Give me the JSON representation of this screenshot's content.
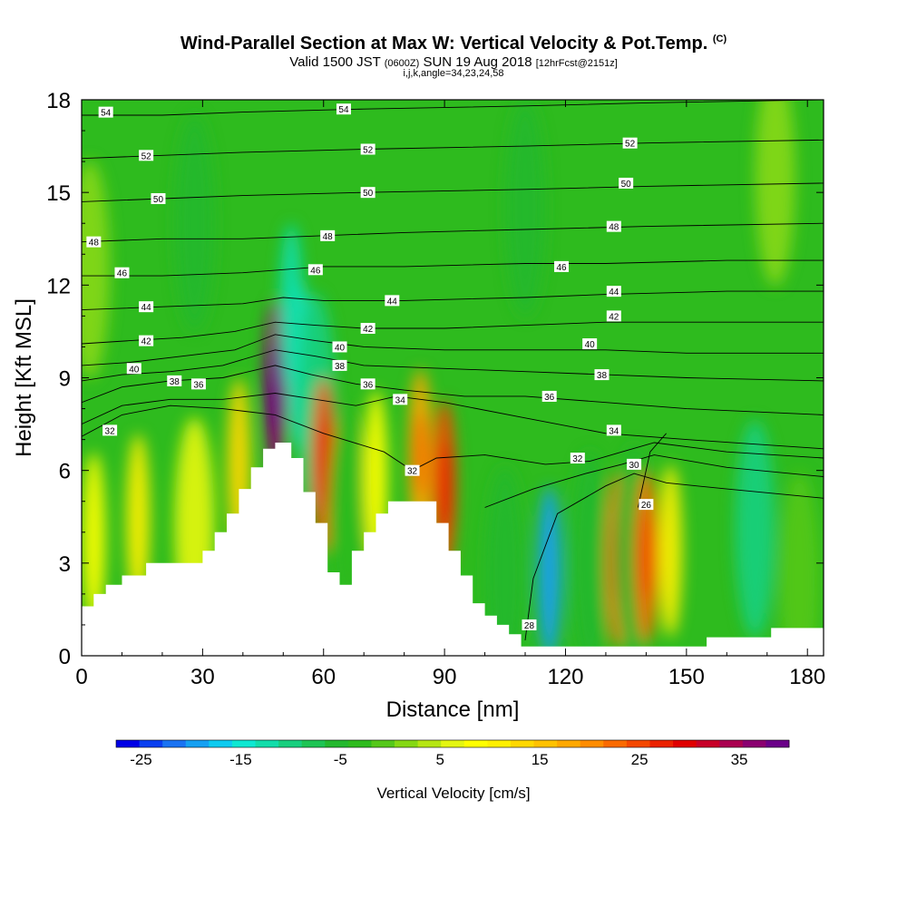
{
  "header": {
    "title_main": "Wind-Parallel Section at Max W: Vertical Velocity & Pot.Temp.",
    "title_unit": "(C)",
    "valid_prefix": "Valid 1500 JST",
    "valid_zulu": "(0600Z)",
    "valid_date": "SUN 19 Aug 2018",
    "forecast": "[12hrFcst@2151z]",
    "indices": "i,j,k,angle=34,23,24,58"
  },
  "chart_data": {
    "type": "heatmap",
    "xlabel": "Distance [nm]",
    "ylabel": "Height [Kft MSL]",
    "xlim": [
      0,
      184
    ],
    "ylim": [
      0,
      18
    ],
    "x_ticks": [
      0,
      30,
      60,
      90,
      120,
      150,
      180
    ],
    "y_ticks": [
      0,
      3,
      6,
      9,
      12,
      15,
      18
    ],
    "terrain_kft": [
      [
        0,
        1.6
      ],
      [
        3,
        1.6
      ],
      [
        3,
        2.0
      ],
      [
        6,
        2.0
      ],
      [
        6,
        2.3
      ],
      [
        10,
        2.3
      ],
      [
        10,
        2.6
      ],
      [
        16,
        2.6
      ],
      [
        16,
        3.0
      ],
      [
        30,
        3.0
      ],
      [
        30,
        3.4
      ],
      [
        33,
        3.4
      ],
      [
        33,
        4.0
      ],
      [
        36,
        4.0
      ],
      [
        36,
        4.6
      ],
      [
        39,
        4.6
      ],
      [
        39,
        5.4
      ],
      [
        42,
        5.4
      ],
      [
        42,
        6.1
      ],
      [
        45,
        6.1
      ],
      [
        45,
        6.7
      ],
      [
        48,
        6.7
      ],
      [
        48,
        6.9
      ],
      [
        52,
        6.9
      ],
      [
        52,
        6.4
      ],
      [
        55,
        6.4
      ],
      [
        55,
        5.3
      ],
      [
        58,
        5.3
      ],
      [
        58,
        4.3
      ],
      [
        61,
        4.3
      ],
      [
        61,
        2.7
      ],
      [
        64,
        2.7
      ],
      [
        64,
        2.3
      ],
      [
        67,
        2.3
      ],
      [
        67,
        3.4
      ],
      [
        70,
        3.4
      ],
      [
        70,
        4.0
      ],
      [
        73,
        4.0
      ],
      [
        73,
        4.6
      ],
      [
        76,
        4.6
      ],
      [
        76,
        5.0
      ],
      [
        88,
        5.0
      ],
      [
        88,
        4.3
      ],
      [
        91,
        4.3
      ],
      [
        91,
        3.4
      ],
      [
        94,
        3.4
      ],
      [
        94,
        2.6
      ],
      [
        97,
        2.6
      ],
      [
        97,
        1.7
      ],
      [
        100,
        1.7
      ],
      [
        100,
        1.3
      ],
      [
        103,
        1.3
      ],
      [
        103,
        1.0
      ],
      [
        106,
        1.0
      ],
      [
        106,
        0.7
      ],
      [
        109,
        0.7
      ],
      [
        109,
        0.3
      ],
      [
        155,
        0.3
      ],
      [
        155,
        0.6
      ],
      [
        171,
        0.6
      ],
      [
        171,
        0.9
      ],
      [
        184,
        0.9
      ]
    ],
    "velocity_cells": [
      {
        "x": 3,
        "z": 3.8,
        "w": 12
      },
      {
        "x": 14,
        "z": 4.4,
        "w": 13
      },
      {
        "x": 28,
        "z": 4.2,
        "w": 9
      },
      {
        "x": 39,
        "z": 6.2,
        "w": 16
      },
      {
        "x": 48,
        "z": 8.7,
        "w": 40
      },
      {
        "x": 54,
        "z": 9.4,
        "w": -15
      },
      {
        "x": 58,
        "z": 8.2,
        "w": -8
      },
      {
        "x": 60,
        "z": 6.2,
        "w": 28
      },
      {
        "x": 66,
        "z": 4.5,
        "w": -1
      },
      {
        "x": 73,
        "z": 5.8,
        "w": 12
      },
      {
        "x": 84,
        "z": 6.5,
        "w": 22
      },
      {
        "x": 90,
        "z": 5.5,
        "w": 28
      },
      {
        "x": 105,
        "z": 2.6,
        "w": -4
      },
      {
        "x": 116,
        "z": 2.7,
        "w": -18
      },
      {
        "x": 126,
        "z": 3.1,
        "w": -3
      },
      {
        "x": 133,
        "z": 3.1,
        "w": 27
      },
      {
        "x": 137,
        "z": 3.3,
        "w": -3
      },
      {
        "x": 140,
        "z": 3.2,
        "w": 26
      },
      {
        "x": 146,
        "z": 3.4,
        "w": 14
      },
      {
        "x": 167,
        "z": 4.1,
        "w": -8
      },
      {
        "x": 178,
        "z": 2.4,
        "w": 0
      },
      {
        "x": 52,
        "z": 11.2,
        "w": -11
      },
      {
        "x": 2,
        "z": 12.5,
        "w": 4
      },
      {
        "x": 28,
        "z": 14,
        "w": -5
      },
      {
        "x": 110,
        "z": 14.5,
        "w": -5
      },
      {
        "x": 172,
        "z": 15.5,
        "w": 3
      }
    ],
    "theta_levels": [
      {
        "value": 26,
        "points": [
          [
            138,
            4.8
          ],
          [
            141,
            6.6
          ],
          [
            145,
            7.2
          ]
        ]
      },
      {
        "value": 28,
        "points": [
          [
            110,
            0.5
          ],
          [
            112,
            2.5
          ],
          [
            118,
            4.6
          ],
          [
            130,
            5.5
          ],
          [
            137,
            5.9
          ],
          [
            145,
            5.6
          ],
          [
            160,
            5.4
          ],
          [
            184,
            5.1
          ]
        ]
      },
      {
        "value": 30,
        "points": [
          [
            100,
            4.8
          ],
          [
            112,
            5.4
          ],
          [
            125,
            5.9
          ],
          [
            134,
            6.2
          ],
          [
            142,
            6.5
          ],
          [
            160,
            6.1
          ],
          [
            184,
            5.8
          ]
        ]
      },
      {
        "value": 32,
        "points": [
          [
            0,
            7.1
          ],
          [
            10,
            7.8
          ],
          [
            22,
            8.1
          ],
          [
            35,
            8.0
          ],
          [
            48,
            7.8
          ],
          [
            60,
            7.2
          ],
          [
            75,
            6.6
          ],
          [
            82,
            6.0
          ],
          [
            88,
            6.4
          ],
          [
            100,
            6.5
          ],
          [
            115,
            6.2
          ],
          [
            126,
            6.3
          ],
          [
            134,
            6.6
          ],
          [
            142,
            6.9
          ],
          [
            160,
            6.6
          ],
          [
            184,
            6.4
          ]
        ]
      },
      {
        "value": 34,
        "points": [
          [
            0,
            7.5
          ],
          [
            10,
            8.1
          ],
          [
            22,
            8.3
          ],
          [
            35,
            8.3
          ],
          [
            48,
            8.5
          ],
          [
            58,
            8.3
          ],
          [
            68,
            8.1
          ],
          [
            78,
            8.4
          ],
          [
            90,
            8.2
          ],
          [
            110,
            7.7
          ],
          [
            130,
            7.2
          ],
          [
            150,
            7.0
          ],
          [
            184,
            6.7
          ]
        ]
      },
      {
        "value": 36,
        "points": [
          [
            0,
            8.2
          ],
          [
            10,
            8.7
          ],
          [
            22,
            8.9
          ],
          [
            35,
            9.0
          ],
          [
            48,
            9.4
          ],
          [
            57,
            9.1
          ],
          [
            68,
            8.8
          ],
          [
            80,
            8.6
          ],
          [
            95,
            8.4
          ],
          [
            110,
            8.4
          ],
          [
            130,
            8.2
          ],
          [
            150,
            8.0
          ],
          [
            184,
            7.8
          ]
        ]
      },
      {
        "value": 38,
        "points": [
          [
            0,
            8.9
          ],
          [
            10,
            9.1
          ],
          [
            22,
            9.2
          ],
          [
            35,
            9.4
          ],
          [
            48,
            9.9
          ],
          [
            58,
            9.7
          ],
          [
            70,
            9.4
          ],
          [
            90,
            9.3
          ],
          [
            110,
            9.2
          ],
          [
            130,
            9.1
          ],
          [
            150,
            9.0
          ],
          [
            184,
            8.9
          ]
        ]
      },
      {
        "value": 40,
        "points": [
          [
            0,
            9.4
          ],
          [
            12,
            9.5
          ],
          [
            25,
            9.7
          ],
          [
            38,
            9.9
          ],
          [
            48,
            10.4
          ],
          [
            58,
            10.2
          ],
          [
            70,
            10.0
          ],
          [
            90,
            9.9
          ],
          [
            110,
            9.9
          ],
          [
            130,
            9.9
          ],
          [
            150,
            9.8
          ],
          [
            184,
            9.8
          ]
        ]
      },
      {
        "value": 42,
        "points": [
          [
            0,
            10.1
          ],
          [
            12,
            10.2
          ],
          [
            25,
            10.3
          ],
          [
            38,
            10.5
          ],
          [
            48,
            10.8
          ],
          [
            58,
            10.7
          ],
          [
            70,
            10.6
          ],
          [
            90,
            10.6
          ],
          [
            110,
            10.7
          ],
          [
            130,
            10.8
          ],
          [
            150,
            10.8
          ],
          [
            184,
            10.8
          ]
        ]
      },
      {
        "value": 44,
        "points": [
          [
            0,
            11.2
          ],
          [
            20,
            11.3
          ],
          [
            40,
            11.4
          ],
          [
            50,
            11.6
          ],
          [
            60,
            11.5
          ],
          [
            80,
            11.5
          ],
          [
            110,
            11.6
          ],
          [
            130,
            11.7
          ],
          [
            160,
            11.8
          ],
          [
            184,
            11.8
          ]
        ]
      },
      {
        "value": 46,
        "points": [
          [
            0,
            12.3
          ],
          [
            20,
            12.3
          ],
          [
            40,
            12.4
          ],
          [
            60,
            12.6
          ],
          [
            80,
            12.6
          ],
          [
            110,
            12.7
          ],
          [
            130,
            12.7
          ],
          [
            160,
            12.8
          ],
          [
            184,
            12.8
          ]
        ]
      },
      {
        "value": 48,
        "points": [
          [
            0,
            13.4
          ],
          [
            20,
            13.5
          ],
          [
            40,
            13.5
          ],
          [
            60,
            13.6
          ],
          [
            80,
            13.7
          ],
          [
            110,
            13.8
          ],
          [
            140,
            13.9
          ],
          [
            184,
            14.0
          ]
        ]
      },
      {
        "value": 50,
        "points": [
          [
            0,
            14.7
          ],
          [
            20,
            14.8
          ],
          [
            40,
            14.9
          ],
          [
            70,
            15.0
          ],
          [
            110,
            15.1
          ],
          [
            140,
            15.2
          ],
          [
            184,
            15.3
          ]
        ]
      },
      {
        "value": 52,
        "points": [
          [
            0,
            16.1
          ],
          [
            20,
            16.2
          ],
          [
            40,
            16.3
          ],
          [
            70,
            16.4
          ],
          [
            110,
            16.5
          ],
          [
            140,
            16.6
          ],
          [
            184,
            16.7
          ]
        ]
      },
      {
        "value": 54,
        "points": [
          [
            0,
            17.5
          ],
          [
            20,
            17.5
          ],
          [
            40,
            17.6
          ],
          [
            70,
            17.7
          ],
          [
            110,
            17.8
          ],
          [
            140,
            17.9
          ],
          [
            184,
            18.0
          ]
        ]
      }
    ],
    "contour_labels": [
      {
        "text": "54",
        "x": 6,
        "z": 17.6
      },
      {
        "text": "54",
        "x": 65,
        "z": 17.7
      },
      {
        "text": "52",
        "x": 16,
        "z": 16.2
      },
      {
        "text": "52",
        "x": 71,
        "z": 16.4
      },
      {
        "text": "52",
        "x": 136,
        "z": 16.6
      },
      {
        "text": "50",
        "x": 19,
        "z": 14.8
      },
      {
        "text": "50",
        "x": 71,
        "z": 15.0
      },
      {
        "text": "50",
        "x": 135,
        "z": 15.3
      },
      {
        "text": "48",
        "x": 3,
        "z": 13.4
      },
      {
        "text": "48",
        "x": 61,
        "z": 13.6
      },
      {
        "text": "48",
        "x": 132,
        "z": 13.9
      },
      {
        "text": "46",
        "x": 10,
        "z": 12.4
      },
      {
        "text": "46",
        "x": 58,
        "z": 12.5
      },
      {
        "text": "46",
        "x": 119,
        "z": 12.6
      },
      {
        "text": "44",
        "x": 16,
        "z": 11.3
      },
      {
        "text": "44",
        "x": 77,
        "z": 11.5
      },
      {
        "text": "44",
        "x": 132,
        "z": 11.8
      },
      {
        "text": "42",
        "x": 16,
        "z": 10.2
      },
      {
        "text": "42",
        "x": 71,
        "z": 10.6
      },
      {
        "text": "42",
        "x": 132,
        "z": 11.0
      },
      {
        "text": "40",
        "x": 13,
        "z": 9.3
      },
      {
        "text": "40",
        "x": 64,
        "z": 10.0
      },
      {
        "text": "40",
        "x": 126,
        "z": 10.1
      },
      {
        "text": "38",
        "x": 23,
        "z": 8.9
      },
      {
        "text": "38",
        "x": 64,
        "z": 9.4
      },
      {
        "text": "38",
        "x": 129,
        "z": 9.1
      },
      {
        "text": "36",
        "x": 29,
        "z": 8.8
      },
      {
        "text": "36",
        "x": 71,
        "z": 8.8
      },
      {
        "text": "36",
        "x": 116,
        "z": 8.4
      },
      {
        "text": "34",
        "x": 79,
        "z": 8.3
      },
      {
        "text": "34",
        "x": 132,
        "z": 7.3
      },
      {
        "text": "32",
        "x": 7,
        "z": 7.3
      },
      {
        "text": "32",
        "x": 82,
        "z": 6.0
      },
      {
        "text": "32",
        "x": 123,
        "z": 6.4
      },
      {
        "text": "30",
        "x": 137,
        "z": 6.2
      },
      {
        "text": "28",
        "x": 111,
        "z": 1.0
      },
      {
        "text": "26",
        "x": 140,
        "z": 4.9
      }
    ],
    "colorbar": {
      "label": "Vertical Velocity [cm/s]",
      "min": -27.5,
      "max": 40,
      "step": 2.5,
      "tick_labels": [
        -25,
        -15,
        -5,
        5,
        15,
        25,
        35
      ],
      "colors": [
        "#0000e6",
        "#0a3ff0",
        "#1a73f2",
        "#16a0f2",
        "#0ecbf0",
        "#0ee8d2",
        "#12ddaa",
        "#18cf7e",
        "#1ec454",
        "#24b82e",
        "#2ebb1e",
        "#55c81a",
        "#85d814",
        "#b6e614",
        "#e4f612",
        "#ffff00",
        "#fff000",
        "#ffd800",
        "#ffc200",
        "#ffa800",
        "#ff8c00",
        "#fa6a00",
        "#f44800",
        "#eb2200",
        "#e00000",
        "#c80028",
        "#aa0050",
        "#8a0070",
        "#6a0088"
      ]
    }
  }
}
